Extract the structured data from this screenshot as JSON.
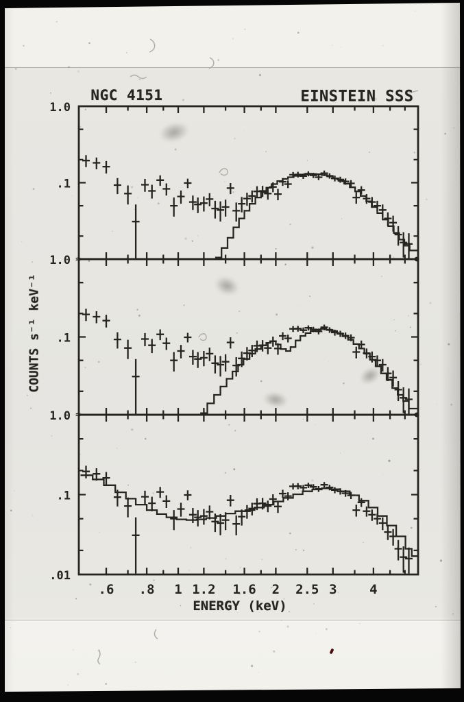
{
  "figure": {
    "title_left": "NGC 4151",
    "title_right": "EINSTEIN SSS",
    "xlabel": "ENERGY (keV)",
    "ylabel": "COUNTS s⁻¹ keV⁻¹"
  },
  "colors": {
    "ink": "#26251f",
    "paper": "#e8e7e2",
    "paper_bright": "#f2f1ed",
    "photo_border": "#060606",
    "red_speck": "#4a0d0d",
    "pencil": "#aeaca5"
  },
  "chart_data": {
    "type": "line",
    "title": "NGC 4151 / EINSTEIN SSS X-ray spectrum, three stacked panels with model fits",
    "xlabel": "ENERGY (keV)",
    "ylabel": "COUNTS s⁻¹ keV⁻¹",
    "x_scale": "log",
    "y_scale": "log",
    "xlim": [
      0.494,
      5.49
    ],
    "grid": false,
    "legend": "none",
    "axis_break_mark": "≈",
    "x_ticks": [
      {
        "v": 0.6,
        "label": ".6"
      },
      {
        "v": 0.8,
        "label": ".8"
      },
      {
        "v": 1.0,
        "label": "1"
      },
      {
        "v": 1.2,
        "label": "1.2"
      },
      {
        "v": 1.6,
        "label": "1.6"
      },
      {
        "v": 2.0,
        "label": "2"
      },
      {
        "v": 2.5,
        "label": "2.5"
      },
      {
        "v": 3.0,
        "label": "3"
      },
      {
        "v": 4.0,
        "label": "4"
      }
    ],
    "x_minor_ticks": [
      0.7,
      0.9,
      1.4,
      1.8,
      3.5,
      4.5,
      5.0
    ],
    "y_minor_ticks": [
      0.5,
      0.2,
      0.05,
      0.02
    ],
    "data_points_shared_across_panels": true,
    "data_points": [
      [
        0.52,
        0.195,
        0.035
      ],
      [
        0.56,
        0.182,
        0.032
      ],
      [
        0.6,
        0.162,
        0.03
      ],
      [
        0.65,
        0.093,
        0.022
      ],
      [
        0.7,
        0.072,
        0.02
      ],
      [
        0.74,
        0.031,
        0.021
      ],
      [
        0.79,
        0.094,
        0.018
      ],
      [
        0.83,
        0.078,
        0.016
      ],
      [
        0.88,
        0.108,
        0.017
      ],
      [
        0.92,
        0.083,
        0.015
      ],
      [
        0.97,
        0.05,
        0.014
      ],
      [
        1.02,
        0.066,
        0.013
      ],
      [
        1.07,
        0.099,
        0.014
      ],
      [
        1.11,
        0.056,
        0.012
      ],
      [
        1.15,
        0.052,
        0.012
      ],
      [
        1.2,
        0.054,
        0.012
      ],
      [
        1.25,
        0.061,
        0.012
      ],
      [
        1.3,
        0.046,
        0.012
      ],
      [
        1.35,
        0.044,
        0.013
      ],
      [
        1.4,
        0.048,
        0.012
      ],
      [
        1.45,
        0.085,
        0.014
      ],
      [
        1.51,
        0.043,
        0.012
      ],
      [
        1.57,
        0.053,
        0.012
      ],
      [
        1.63,
        0.062,
        0.012
      ],
      [
        1.69,
        0.067,
        0.012
      ],
      [
        1.75,
        0.077,
        0.013
      ],
      [
        1.82,
        0.078,
        0.013
      ],
      [
        1.89,
        0.072,
        0.012
      ],
      [
        1.96,
        0.088,
        0.013
      ],
      [
        2.03,
        0.071,
        0.012
      ],
      [
        2.1,
        0.103,
        0.012
      ],
      [
        2.18,
        0.096,
        0.011
      ],
      [
        2.26,
        0.127,
        0.011
      ],
      [
        2.34,
        0.128,
        0.011
      ],
      [
        2.43,
        0.122,
        0.01
      ],
      [
        2.52,
        0.131,
        0.01
      ],
      [
        2.61,
        0.125,
        0.01
      ],
      [
        2.71,
        0.118,
        0.01
      ],
      [
        2.82,
        0.133,
        0.011
      ],
      [
        2.93,
        0.123,
        0.01
      ],
      [
        3.04,
        0.114,
        0.01
      ],
      [
        3.16,
        0.11,
        0.01
      ],
      [
        3.28,
        0.104,
        0.01
      ],
      [
        3.41,
        0.098,
        0.01
      ],
      [
        3.54,
        0.064,
        0.011
      ],
      [
        3.67,
        0.08,
        0.01
      ],
      [
        3.81,
        0.062,
        0.009
      ],
      [
        3.96,
        0.056,
        0.009
      ],
      [
        4.11,
        0.05,
        0.008
      ],
      [
        4.27,
        0.044,
        0.008
      ],
      [
        4.43,
        0.034,
        0.007
      ],
      [
        4.6,
        0.03,
        0.007
      ],
      [
        4.77,
        0.021,
        0.006
      ],
      [
        4.95,
        0.0165,
        0.006
      ],
      [
        5.14,
        0.0158,
        0.006
      ]
    ],
    "panels": [
      {
        "ylim": [
          0.01,
          1.0
        ],
        "y_ticks": [
          {
            "v": 1.0,
            "label": "1.0"
          },
          {
            "v": 0.1,
            "label": ".1"
          }
        ],
        "model_steps": [
          [
            1.3,
            0.0105
          ],
          [
            1.36,
            0.014
          ],
          [
            1.42,
            0.019
          ],
          [
            1.48,
            0.026
          ],
          [
            1.54,
            0.034
          ],
          [
            1.6,
            0.043
          ],
          [
            1.66,
            0.053
          ],
          [
            1.73,
            0.064
          ],
          [
            1.8,
            0.075
          ],
          [
            1.87,
            0.086
          ],
          [
            1.94,
            0.096
          ],
          [
            2.02,
            0.105
          ],
          [
            2.1,
            0.112
          ],
          [
            2.18,
            0.118
          ],
          [
            2.27,
            0.123
          ],
          [
            2.36,
            0.127
          ],
          [
            2.46,
            0.129
          ],
          [
            2.56,
            0.13
          ],
          [
            2.66,
            0.129
          ],
          [
            2.77,
            0.126
          ],
          [
            2.88,
            0.121
          ],
          [
            3.0,
            0.114
          ],
          [
            3.12,
            0.106
          ],
          [
            3.25,
            0.097
          ],
          [
            3.38,
            0.087
          ],
          [
            3.51,
            0.077
          ],
          [
            3.65,
            0.067
          ],
          [
            3.8,
            0.057
          ],
          [
            3.95,
            0.048
          ],
          [
            4.11,
            0.04
          ],
          [
            4.27,
            0.033
          ],
          [
            4.44,
            0.027
          ],
          [
            4.62,
            0.022
          ],
          [
            4.8,
            0.018
          ],
          [
            4.98,
            0.015
          ],
          [
            5.17,
            0.013
          ]
        ]
      },
      {
        "ylim": [
          0.01,
          1.0
        ],
        "y_ticks": [
          {
            "v": 1.0,
            "label": "1.0"
          },
          {
            "v": 0.1,
            "label": ".1"
          }
        ],
        "model_steps": [
          [
            1.17,
            0.0105
          ],
          [
            1.23,
            0.014
          ],
          [
            1.29,
            0.018
          ],
          [
            1.35,
            0.023
          ],
          [
            1.41,
            0.029
          ],
          [
            1.47,
            0.036
          ],
          [
            1.53,
            0.044
          ],
          [
            1.59,
            0.052
          ],
          [
            1.66,
            0.061
          ],
          [
            1.73,
            0.07
          ],
          [
            1.8,
            0.078
          ],
          [
            1.87,
            0.084
          ],
          [
            1.93,
            0.088
          ],
          [
            2.0,
            0.08
          ],
          [
            2.07,
            0.07
          ],
          [
            2.15,
            0.066
          ],
          [
            2.22,
            0.074
          ],
          [
            2.3,
            0.09
          ],
          [
            2.38,
            0.103
          ],
          [
            2.47,
            0.112
          ],
          [
            2.56,
            0.119
          ],
          [
            2.65,
            0.124
          ],
          [
            2.75,
            0.127
          ],
          [
            2.86,
            0.124
          ],
          [
            2.97,
            0.119
          ],
          [
            3.09,
            0.111
          ],
          [
            3.21,
            0.102
          ],
          [
            3.34,
            0.092
          ],
          [
            3.47,
            0.081
          ],
          [
            3.61,
            0.071
          ],
          [
            3.75,
            0.061
          ],
          [
            3.9,
            0.051
          ],
          [
            4.06,
            0.042
          ],
          [
            4.22,
            0.034
          ],
          [
            4.39,
            0.028
          ],
          [
            4.57,
            0.022
          ],
          [
            4.75,
            0.018
          ],
          [
            4.94,
            0.015
          ],
          [
            5.14,
            0.012
          ]
        ]
      },
      {
        "ylim": [
          0.01,
          1.0
        ],
        "y_ticks": [
          {
            "v": 1.0,
            "label": "1.0"
          },
          {
            "v": 0.1,
            "label": ".1"
          },
          {
            "v": 0.01,
            "label": ".01"
          }
        ],
        "model_steps": [
          [
            0.5,
            0.175
          ],
          [
            0.545,
            0.155
          ],
          [
            0.59,
            0.131
          ],
          [
            0.64,
            0.107
          ],
          [
            0.69,
            0.089
          ],
          [
            0.74,
            0.075
          ],
          [
            0.8,
            0.064
          ],
          [
            0.86,
            0.057
          ],
          [
            0.92,
            0.052
          ],
          [
            0.99,
            0.049
          ],
          [
            1.06,
            0.048
          ],
          [
            1.14,
            0.049
          ],
          [
            1.22,
            0.051
          ],
          [
            1.31,
            0.054
          ],
          [
            1.4,
            0.058
          ],
          [
            1.5,
            0.062
          ],
          [
            1.61,
            0.064
          ],
          [
            1.72,
            0.069
          ],
          [
            1.84,
            0.075
          ],
          [
            1.97,
            0.082
          ],
          [
            2.11,
            0.091
          ],
          [
            2.26,
            0.101
          ],
          [
            2.42,
            0.11
          ],
          [
            2.59,
            0.116
          ],
          [
            2.77,
            0.12
          ],
          [
            2.96,
            0.117
          ],
          [
            3.16,
            0.11
          ],
          [
            3.38,
            0.098
          ],
          [
            3.61,
            0.084
          ],
          [
            3.86,
            0.069
          ],
          [
            4.12,
            0.054
          ],
          [
            4.4,
            0.041
          ],
          [
            4.7,
            0.03
          ],
          [
            5.02,
            0.021
          ],
          [
            5.25,
            0.017
          ]
        ]
      }
    ]
  }
}
